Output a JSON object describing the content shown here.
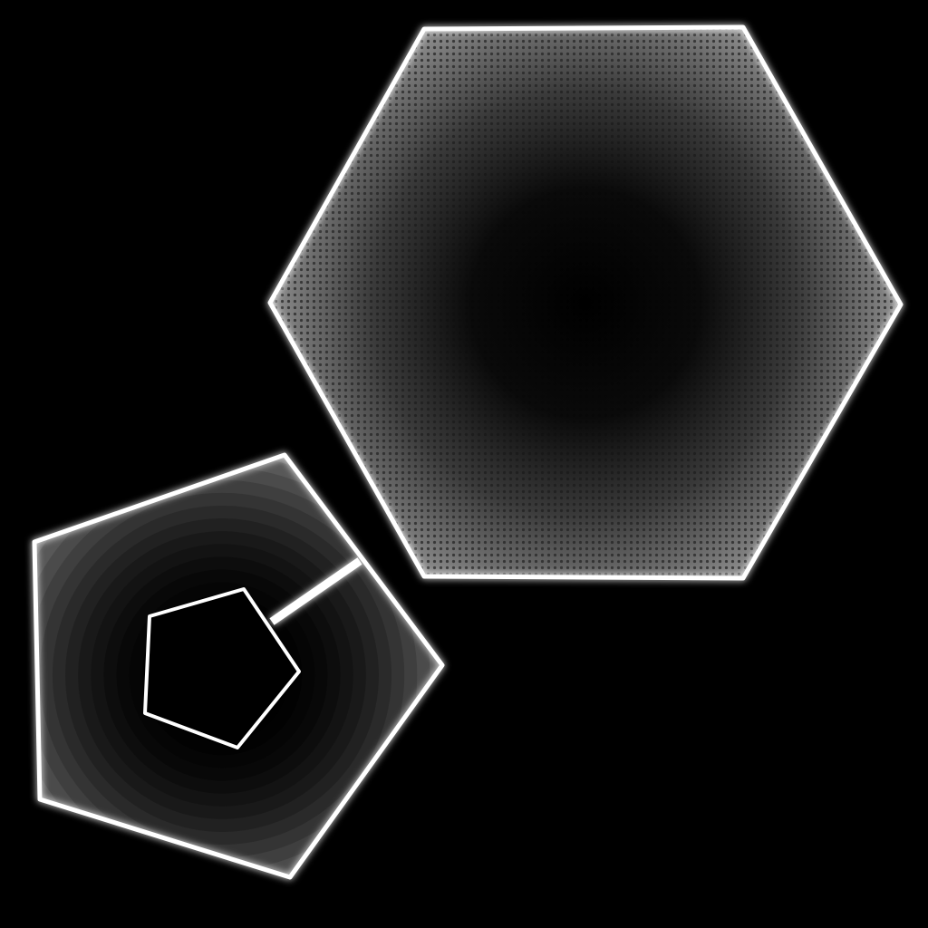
{
  "scene": {
    "background_color": "#000000",
    "outline_color": "#ffffff",
    "hexagon": {
      "fill_style": "radial-gradient-dotted",
      "center_color": "#000000",
      "edge_color": "#8a8a8a"
    },
    "outer_pentagon": {
      "fill_style": "radial-gradient-banded",
      "center_color": "#000000",
      "edge_color": "#9a9a9a"
    },
    "inner_pentagon": {
      "fill_color": "#000000"
    }
  }
}
